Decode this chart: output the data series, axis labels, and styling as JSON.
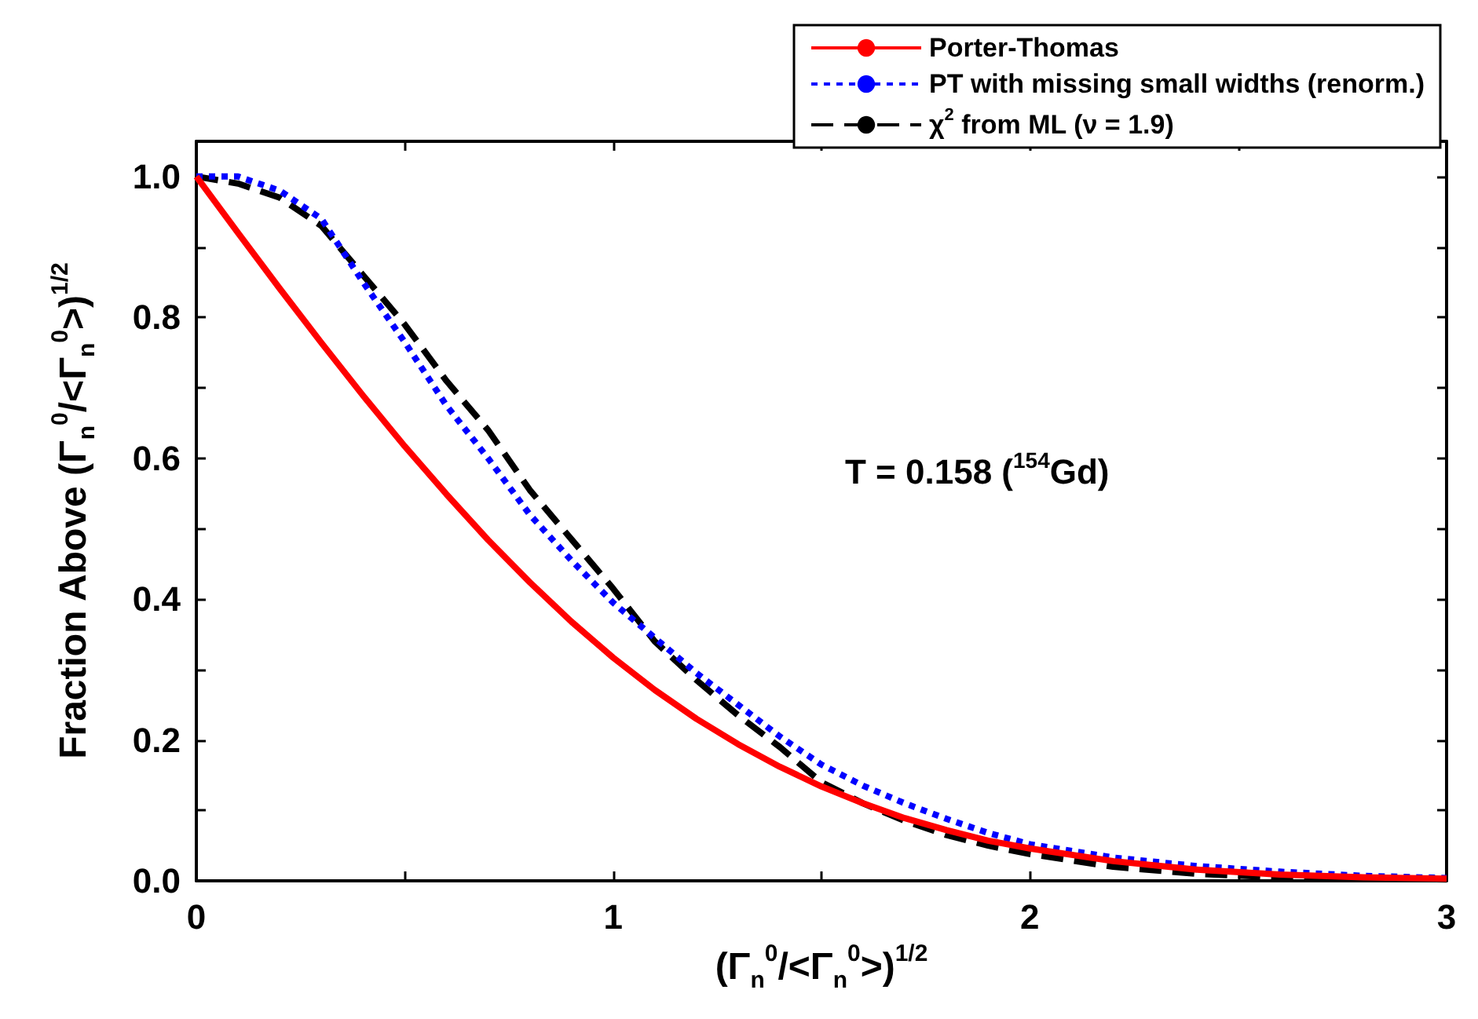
{
  "chart_data": {
    "type": "line",
    "xlabel": "(Γ$_{n}$$^{0}$/<Γ$_{n}$$^{0}$>)$^{1/2}$",
    "ylabel": "Fraction Above (Γ$_{n}$$^{0}$/<Γ$_{n}$$^{0}$>)$^{1/2}$",
    "annotations": [
      "T = 0.158 ($^{154}$Gd)"
    ],
    "x": [
      0,
      0.1,
      0.2,
      0.3,
      0.4,
      0.5,
      0.6,
      0.7,
      0.8,
      0.9,
      1.0,
      1.1,
      1.2,
      1.3,
      1.4,
      1.5,
      1.6,
      1.7,
      1.8,
      1.9,
      2.0,
      2.2,
      2.4,
      2.6,
      2.8,
      3.0
    ],
    "series": [
      {
        "name": "Porter-Thomas",
        "color": "#ff0000",
        "line_style": "solid",
        "values": [
          1,
          0.92,
          0.841,
          0.764,
          0.689,
          0.617,
          0.549,
          0.484,
          0.424,
          0.368,
          0.317,
          0.271,
          0.23,
          0.194,
          0.162,
          0.134,
          0.11,
          0.089,
          0.072,
          0.057,
          0.046,
          0.028,
          0.016,
          0.009,
          0.005,
          0.003
        ]
      },
      {
        "name": "PT with missing small widths (renorm.)",
        "color": "#0000ff",
        "line_style": "dotted",
        "values": [
          1,
          1,
          0.98,
          0.94,
          0.85,
          0.765,
          0.675,
          0.6,
          0.52,
          0.455,
          0.395,
          0.345,
          0.295,
          0.25,
          0.205,
          0.165,
          0.135,
          0.11,
          0.088,
          0.068,
          0.052,
          0.033,
          0.021,
          0.013,
          0.007,
          0.004
        ]
      },
      {
        "name": "χ$^{2}$ from ML (ν = 1.9)",
        "color": "#000000",
        "line_style": "dashed",
        "values": [
          1,
          0.99,
          0.97,
          0.93,
          0.86,
          0.79,
          0.71,
          0.64,
          0.555,
          0.485,
          0.415,
          0.34,
          0.285,
          0.235,
          0.19,
          0.14,
          0.11,
          0.085,
          0.065,
          0.05,
          0.038,
          0.02,
          0.01,
          0.005,
          0.003,
          0.002
        ]
      }
    ],
    "xlim": [
      0,
      3
    ],
    "xticks": [
      0,
      {
        "value": 0.5,
        "label": null
      },
      1,
      {
        "value": 1.5,
        "label": null
      },
      2,
      {
        "value": 2.5,
        "label": null
      },
      3
    ],
    "ylim": [
      0,
      1.05
    ],
    "yticks": [
      {
        "value": 0,
        "label": "0.0"
      },
      {
        "value": 0.1,
        "label": null
      },
      {
        "value": 0.2,
        "label": "0.2"
      },
      {
        "value": 0.3,
        "label": null
      },
      {
        "value": 0.4,
        "label": "0.4"
      },
      {
        "value": 0.5,
        "label": null
      },
      {
        "value": 0.6,
        "label": "0.6"
      },
      {
        "value": 0.7,
        "label": null
      },
      {
        "value": 0.8,
        "label": "0.8"
      },
      {
        "value": 0.9,
        "label": null
      },
      {
        "value": 1,
        "label": "1.0"
      }
    ],
    "grid": false,
    "legend": "top right",
    "marker": "none"
  }
}
